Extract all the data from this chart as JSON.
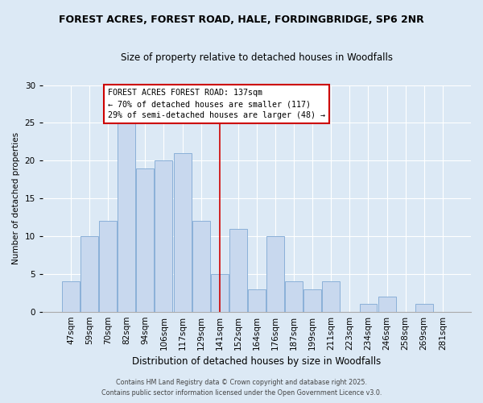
{
  "title1": "FOREST ACRES, FOREST ROAD, HALE, FORDINGBRIDGE, SP6 2NR",
  "title2": "Size of property relative to detached houses in Woodfalls",
  "xlabel": "Distribution of detached houses by size in Woodfalls",
  "ylabel": "Number of detached properties",
  "categories": [
    "47sqm",
    "59sqm",
    "70sqm",
    "82sqm",
    "94sqm",
    "106sqm",
    "117sqm",
    "129sqm",
    "141sqm",
    "152sqm",
    "164sqm",
    "176sqm",
    "187sqm",
    "199sqm",
    "211sqm",
    "223sqm",
    "234sqm",
    "246sqm",
    "258sqm",
    "269sqm",
    "281sqm"
  ],
  "values": [
    4,
    10,
    12,
    25,
    19,
    20,
    21,
    12,
    5,
    11,
    3,
    10,
    4,
    3,
    4,
    0,
    1,
    2,
    0,
    1,
    0
  ],
  "bar_color": "#c8d8ee",
  "bar_edge_color": "#8ab0d8",
  "vline_x_index": 8,
  "vline_color": "#cc0000",
  "annotation_title": "FOREST ACRES FOREST ROAD: 137sqm",
  "annotation_line1": "← 70% of detached houses are smaller (117)",
  "annotation_line2": "29% of semi-detached houses are larger (48) →",
  "annotation_box_color": "#ffffff",
  "annotation_box_edge": "#cc0000",
  "ylim": [
    0,
    30
  ],
  "yticks": [
    0,
    5,
    10,
    15,
    20,
    25,
    30
  ],
  "footer1": "Contains HM Land Registry data © Crown copyright and database right 2025.",
  "footer2": "Contains public sector information licensed under the Open Government Licence v3.0.",
  "bg_color": "#dce9f5"
}
